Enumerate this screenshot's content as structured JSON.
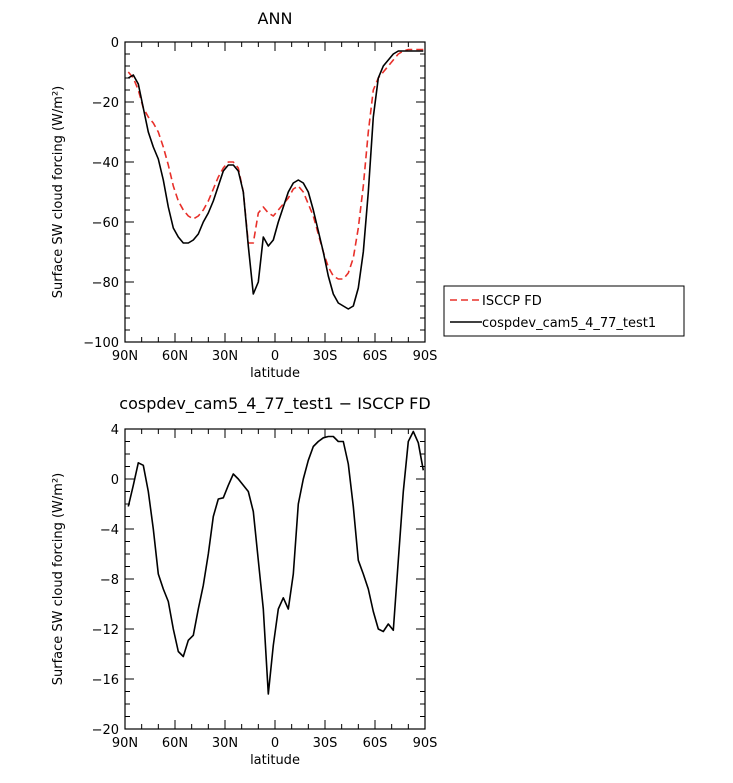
{
  "chart_data": [
    {
      "type": "line",
      "title": "ANN",
      "xlabel": "latitude",
      "ylabel": "Surface SW cloud forcing (W/m²)",
      "xlim": [
        90,
        -90
      ],
      "ylim": [
        -100,
        0
      ],
      "x_ticks": [
        90,
        60,
        30,
        0,
        -30,
        -60,
        -90
      ],
      "x_tick_labels": [
        "90N",
        "60N",
        "30N",
        "0",
        "30S",
        "60S",
        "90S"
      ],
      "y_ticks": [
        0,
        -20,
        -40,
        -60,
        -80,
        -100
      ],
      "y_tick_labels": [
        "0",
        "−20",
        "−40",
        "−60",
        "−80",
        "−100"
      ],
      "legend": "right",
      "series": [
        {
          "name": "ISCCP FD",
          "color": "#e8302a",
          "dash": "dashed",
          "x": [
            88,
            85,
            82,
            79,
            76,
            73,
            70,
            67,
            64,
            61,
            58,
            55,
            52,
            49,
            46,
            43,
            40,
            37,
            34,
            31,
            28,
            25,
            22,
            19,
            16,
            13,
            10,
            7,
            4,
            1,
            -2,
            -5,
            -8,
            -11,
            -14,
            -17,
            -20,
            -23,
            -26,
            -29,
            -32,
            -35,
            -38,
            -41,
            -44,
            -47,
            -50,
            -53,
            -56,
            -59,
            -62,
            -65,
            -68,
            -71,
            -74,
            -77,
            -80,
            -83,
            -86,
            -89
          ],
          "y": [
            -10,
            -12,
            -16,
            -22,
            -25,
            -27,
            -30,
            -35,
            -41,
            -48,
            -53,
            -56,
            -58,
            -59,
            -58,
            -56,
            -53,
            -49,
            -45,
            -42,
            -40,
            -40,
            -42,
            -50,
            -67,
            -67,
            -57,
            -55,
            -57,
            -58,
            -56,
            -54,
            -52,
            -49,
            -48,
            -50,
            -54,
            -58,
            -64,
            -70,
            -75,
            -78,
            -79,
            -79,
            -77,
            -72,
            -62,
            -48,
            -30,
            -16,
            -12,
            -10,
            -8,
            -6,
            -4,
            -3,
            -2.5,
            -2.5,
            -2.5,
            -2.5
          ]
        },
        {
          "name": "cospdev_cam5_4_77_test1",
          "color": "#000000",
          "dash": "solid",
          "x": [
            88,
            85,
            82,
            79,
            76,
            73,
            70,
            67,
            64,
            61,
            58,
            55,
            52,
            49,
            46,
            43,
            40,
            37,
            34,
            31,
            28,
            25,
            22,
            19,
            16,
            13,
            10,
            7,
            4,
            1,
            -2,
            -5,
            -8,
            -11,
            -14,
            -17,
            -20,
            -23,
            -26,
            -29,
            -32,
            -35,
            -38,
            -41,
            -44,
            -47,
            -50,
            -53,
            -56,
            -59,
            -62,
            -65,
            -68,
            -71,
            -74,
            -77,
            -80,
            -83,
            -86,
            -89
          ],
          "y": [
            -12,
            -11,
            -14,
            -22,
            -30,
            -35,
            -39,
            -46,
            -55,
            -62,
            -65,
            -67,
            -67,
            -66,
            -64,
            -60,
            -57,
            -53,
            -48,
            -43,
            -41,
            -41,
            -43,
            -50,
            -68,
            -84,
            -80,
            -65,
            -68,
            -66,
            -60,
            -55,
            -50,
            -47,
            -46,
            -47,
            -50,
            -56,
            -63,
            -70,
            -78,
            -84,
            -87,
            -88,
            -89,
            -88,
            -82,
            -70,
            -50,
            -25,
            -12,
            -8,
            -6,
            -4,
            -3,
            -3,
            -3,
            -3,
            -3,
            -3
          ]
        }
      ]
    },
    {
      "type": "line",
      "title": "cospdev_cam5_4_77_test1 − ISCCP FD",
      "xlabel": "latitude",
      "ylabel": "Surface SW cloud forcing (W/m²)",
      "xlim": [
        90,
        -90
      ],
      "ylim": [
        -20,
        4
      ],
      "x_ticks": [
        90,
        60,
        30,
        0,
        -30,
        -60,
        -90
      ],
      "x_tick_labels": [
        "90N",
        "60N",
        "30N",
        "0",
        "30S",
        "60S",
        "90S"
      ],
      "y_ticks": [
        4,
        0,
        -4,
        -8,
        -12,
        -16,
        -20
      ],
      "y_tick_labels": [
        "4",
        "0",
        "−4",
        "−8",
        "−12",
        "−16",
        "−20"
      ],
      "series": [
        {
          "name": "",
          "color": "#000000",
          "dash": "solid",
          "x": [
            88,
            85,
            82,
            79,
            76,
            73,
            70,
            67,
            64,
            61,
            58,
            55,
            52,
            49,
            46,
            43,
            40,
            37,
            34,
            31,
            28,
            25,
            22,
            19,
            16,
            13,
            10,
            7,
            4,
            1,
            -2,
            -5,
            -8,
            -11,
            -14,
            -17,
            -20,
            -23,
            -26,
            -29,
            -32,
            -35,
            -38,
            -41,
            -44,
            -47,
            -50,
            -53,
            -56,
            -59,
            -62,
            -65,
            -68,
            -71,
            -74,
            -77,
            -80,
            -83,
            -86,
            -89
          ],
          "y": [
            -2.2,
            -0.5,
            1.3,
            1.1,
            -1,
            -4,
            -7.6,
            -8.8,
            -9.8,
            -12,
            -13.8,
            -14.2,
            -12.9,
            -12.5,
            -10.4,
            -8.5,
            -6,
            -3,
            -1.6,
            -1.5,
            -0.5,
            0.4,
            0,
            -0.5,
            -1,
            -2.6,
            -6.5,
            -10.4,
            -17.2,
            -13.3,
            -10.4,
            -9.5,
            -10.4,
            -7.6,
            -2,
            0,
            1.5,
            2.6,
            3,
            3.3,
            3.4,
            3.4,
            3,
            3,
            1.2,
            -2.2,
            -6.5,
            -7.6,
            -8.8,
            -10.6,
            -12,
            -12.2,
            -11.6,
            -12.1,
            -6.5,
            -1,
            3,
            3.8,
            2.9,
            0.7
          ]
        }
      ]
    }
  ]
}
